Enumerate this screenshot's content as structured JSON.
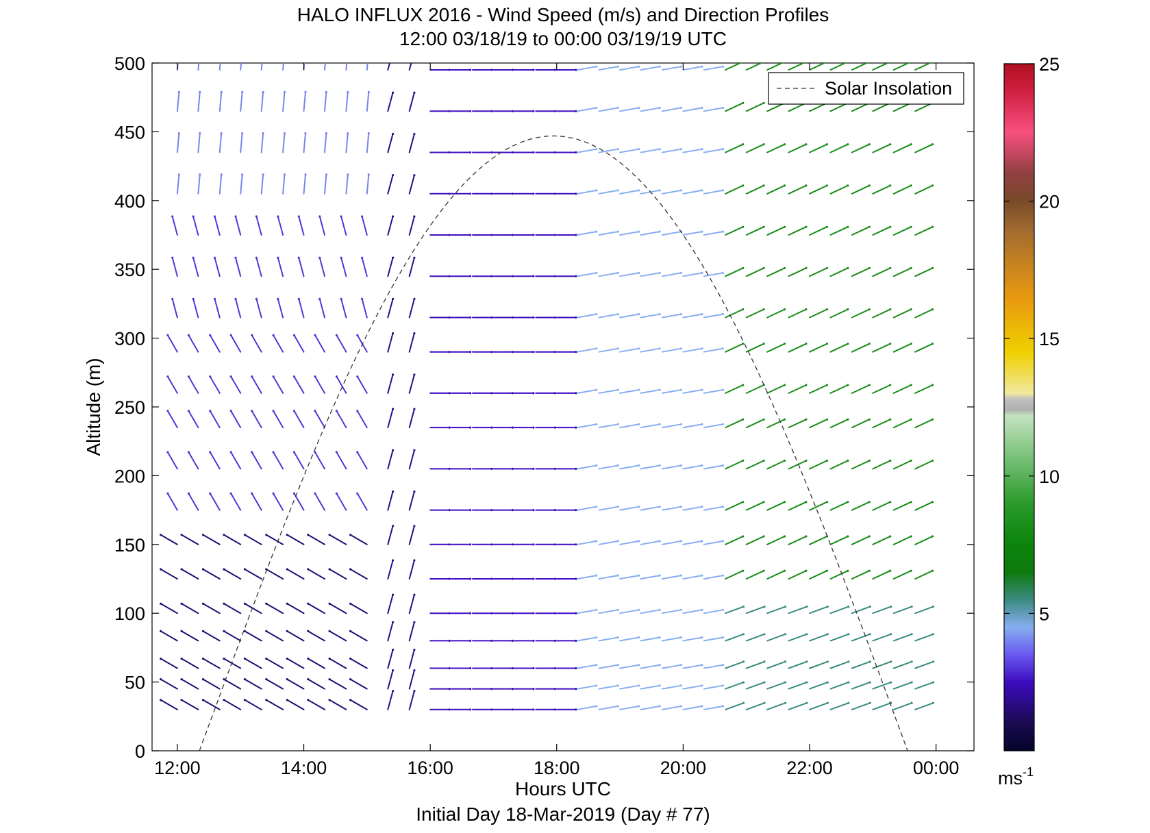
{
  "chart_data": {
    "type": "wind-barb-profile",
    "title": "HALO INFLUX 2016 - Wind Speed (m/s) and Direction Profiles",
    "subtitle": "12:00 03/18/19 to 00:00 03/19/19  UTC",
    "xlabel": "Hours UTC",
    "xlabel2": "Initial Day 18-Mar-2019 (Day # 77)",
    "ylabel": "Altitude (m)",
    "xlim": [
      11.6,
      24.6
    ],
    "ylim": [
      0,
      500
    ],
    "x_ticks": [
      {
        "value": 12,
        "label": "12:00"
      },
      {
        "value": 14,
        "label": "14:00"
      },
      {
        "value": 16,
        "label": "16:00"
      },
      {
        "value": 18,
        "label": "18:00"
      },
      {
        "value": 20,
        "label": "20:00"
      },
      {
        "value": 22,
        "label": "22:00"
      },
      {
        "value": 24,
        "label": "00:00"
      }
    ],
    "y_ticks": [
      0,
      50,
      100,
      150,
      200,
      250,
      300,
      350,
      400,
      450,
      500
    ],
    "legend": {
      "label": "Solar Insolation",
      "placement": "top-right"
    },
    "solar_insolation": {
      "start_hour": 12.35,
      "end_hour": 23.55,
      "peak_altitude": 447
    },
    "colorbar": {
      "unit": "ms-1",
      "range": [
        0,
        25
      ],
      "ticks": [
        5,
        10,
        15,
        20,
        25
      ],
      "stops": [
        {
          "v": 0,
          "c": "#05052a"
        },
        {
          "v": 1,
          "c": "#1a0a50"
        },
        {
          "v": 2.5,
          "c": "#3d0cc0"
        },
        {
          "v": 3.5,
          "c": "#6a5af0"
        },
        {
          "v": 4.5,
          "c": "#86aef0"
        },
        {
          "v": 5.5,
          "c": "#3a8a80"
        },
        {
          "v": 6.5,
          "c": "#0d7a0d"
        },
        {
          "v": 7.5,
          "c": "#0c840c"
        },
        {
          "v": 9,
          "c": "#2a9a2a"
        },
        {
          "v": 11,
          "c": "#88c888"
        },
        {
          "v": 12.2,
          "c": "#c4e2c0"
        },
        {
          "v": 12.4,
          "c": "#b0b0b0"
        },
        {
          "v": 12.8,
          "c": "#c0c0c0"
        },
        {
          "v": 13,
          "c": "#f0e8a0"
        },
        {
          "v": 14.5,
          "c": "#f0d000"
        },
        {
          "v": 16.5,
          "c": "#e89810"
        },
        {
          "v": 19,
          "c": "#a06a30"
        },
        {
          "v": 20,
          "c": "#7a4a2a"
        },
        {
          "v": 21,
          "c": "#904040"
        },
        {
          "v": 22.5,
          "c": "#f85080"
        },
        {
          "v": 24,
          "c": "#d02040"
        },
        {
          "v": 25,
          "c": "#b01020"
        }
      ]
    },
    "times": [
      12,
      12.33,
      12.67,
      13,
      13.33,
      13.67,
      14,
      14.33,
      14.67,
      15,
      15.33,
      15.67,
      16,
      16.33,
      16.67,
      17,
      17.33,
      17.67,
      18,
      18.33,
      18.67,
      19,
      19.33,
      19.67,
      20,
      20.33,
      20.67,
      21,
      21.33,
      21.67,
      22,
      22.33,
      22.67,
      23,
      23.33,
      23.67
    ],
    "altitudes": [
      30,
      45,
      60,
      80,
      100,
      125,
      150,
      175,
      205,
      235,
      260,
      290,
      315,
      345,
      375,
      405,
      435,
      465,
      495
    ],
    "wind_segments": [
      {
        "t0": 12,
        "t1": 15.1,
        "alt0": 30,
        "alt1": 150,
        "dir": 300,
        "speed": 1.5
      },
      {
        "t0": 12,
        "t1": 15.1,
        "alt0": 151,
        "alt1": 300,
        "dir": 330,
        "speed": 3
      },
      {
        "t0": 12,
        "t1": 15.1,
        "alt0": 301,
        "alt1": 400,
        "dir": 345,
        "speed": 3
      },
      {
        "t0": 12,
        "t1": 15.1,
        "alt0": 401,
        "alt1": 500,
        "dir": 5,
        "speed": 4
      },
      {
        "t0": 15.1,
        "t1": 15.8,
        "alt0": 30,
        "alt1": 500,
        "dir": 15,
        "speed": 1.8
      },
      {
        "t0": 15.8,
        "t1": 18.2,
        "alt0": 30,
        "alt1": 500,
        "dir": 90,
        "speed": 2.5
      },
      {
        "t0": 18.2,
        "t1": 20.6,
        "alt0": 30,
        "alt1": 500,
        "dir": 80,
        "speed": 4.5
      },
      {
        "t0": 20.6,
        "t1": 23.8,
        "alt0": 30,
        "alt1": 100,
        "dir": 70,
        "speed": 5.5
      },
      {
        "t0": 20.6,
        "t1": 23.8,
        "alt0": 101,
        "alt1": 500,
        "dir": 65,
        "speed": 8
      }
    ]
  }
}
